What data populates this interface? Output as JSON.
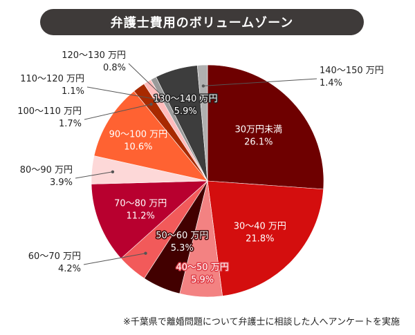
{
  "chart_data": {
    "type": "pie",
    "title": "弁護士費用のボリュームゾーン",
    "footnote": "※千葉県で離婚問題について弁護士に相談した人へアンケートを実施",
    "slices": [
      {
        "label": "30万円未満",
        "value": 26.1,
        "value_text": "26.1%",
        "color": "#6e0000"
      },
      {
        "label": "30〜40 万円",
        "value": 21.8,
        "value_text": "21.8%",
        "color": "#d40e0e"
      },
      {
        "label": "40〜50 万円",
        "value": 5.9,
        "value_text": "5.9%",
        "color": "#f38282"
      },
      {
        "label": "50〜60 万円",
        "value": 5.3,
        "value_text": "5.3%",
        "color": "#420000"
      },
      {
        "label": "60〜70 万円",
        "value": 4.2,
        "value_text": "4.2%",
        "color": "#f25a5a"
      },
      {
        "label": "70〜80 万円",
        "value": 11.2,
        "value_text": "11.2%",
        "color": "#b8002f"
      },
      {
        "label": "80〜90 万円",
        "value": 3.9,
        "value_text": "3.9%",
        "color": "#fdd8d8"
      },
      {
        "label": "90〜100 万円",
        "value": 10.6,
        "value_text": "10.6%",
        "color": "#ff6232"
      },
      {
        "label": "100〜110 万円",
        "value": 1.7,
        "value_text": "1.7%",
        "color": "#a82a00"
      },
      {
        "label": "110〜120 万円",
        "value": 1.1,
        "value_text": "1.1%",
        "color": "#ffbcbc"
      },
      {
        "label": "120〜130 万円",
        "value": 0.8,
        "value_text": "0.8%",
        "color": "#9a9a9a"
      },
      {
        "label": "130〜140 万円",
        "value": 5.9,
        "value_text": "5.9%",
        "color": "#3d3d3d"
      },
      {
        "label": "140〜150 万円",
        "value": 1.4,
        "value_text": "1.4%",
        "color": "#b0b0b0"
      }
    ]
  }
}
